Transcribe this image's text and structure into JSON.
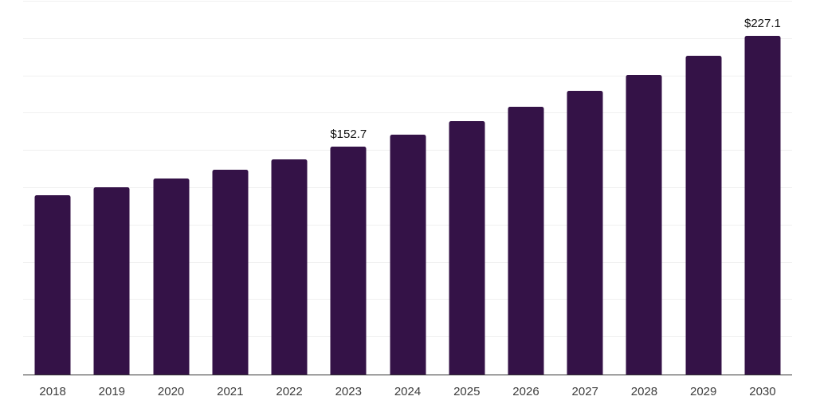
{
  "chart_data": {
    "type": "bar",
    "title": "",
    "xlabel": "",
    "ylabel": "",
    "categories": [
      "2018",
      "2019",
      "2020",
      "2021",
      "2022",
      "2023",
      "2024",
      "2025",
      "2026",
      "2027",
      "2028",
      "2029",
      "2030"
    ],
    "values": [
      120.3,
      125.5,
      131.2,
      137.2,
      144.5,
      152.7,
      160.7,
      169.8,
      179.6,
      190.1,
      201.1,
      213.5,
      227.1
    ],
    "data_labels": [
      "",
      "",
      "",
      "",
      "",
      "$152.7",
      "",
      "",
      "",
      "",
      "",
      "",
      "$227.1"
    ],
    "ylim": [
      0,
      250
    ],
    "gridline_interval": 25,
    "grid": "horizontal-only",
    "y_tick_labels_visible": false,
    "legend": "none",
    "colors": {
      "bar": "#341247",
      "gridline": "#f0f0f0",
      "axis_line": "#333333",
      "value_label": "#111111",
      "x_tick_label": "#3d3d3d",
      "background": "#ffffff"
    }
  }
}
